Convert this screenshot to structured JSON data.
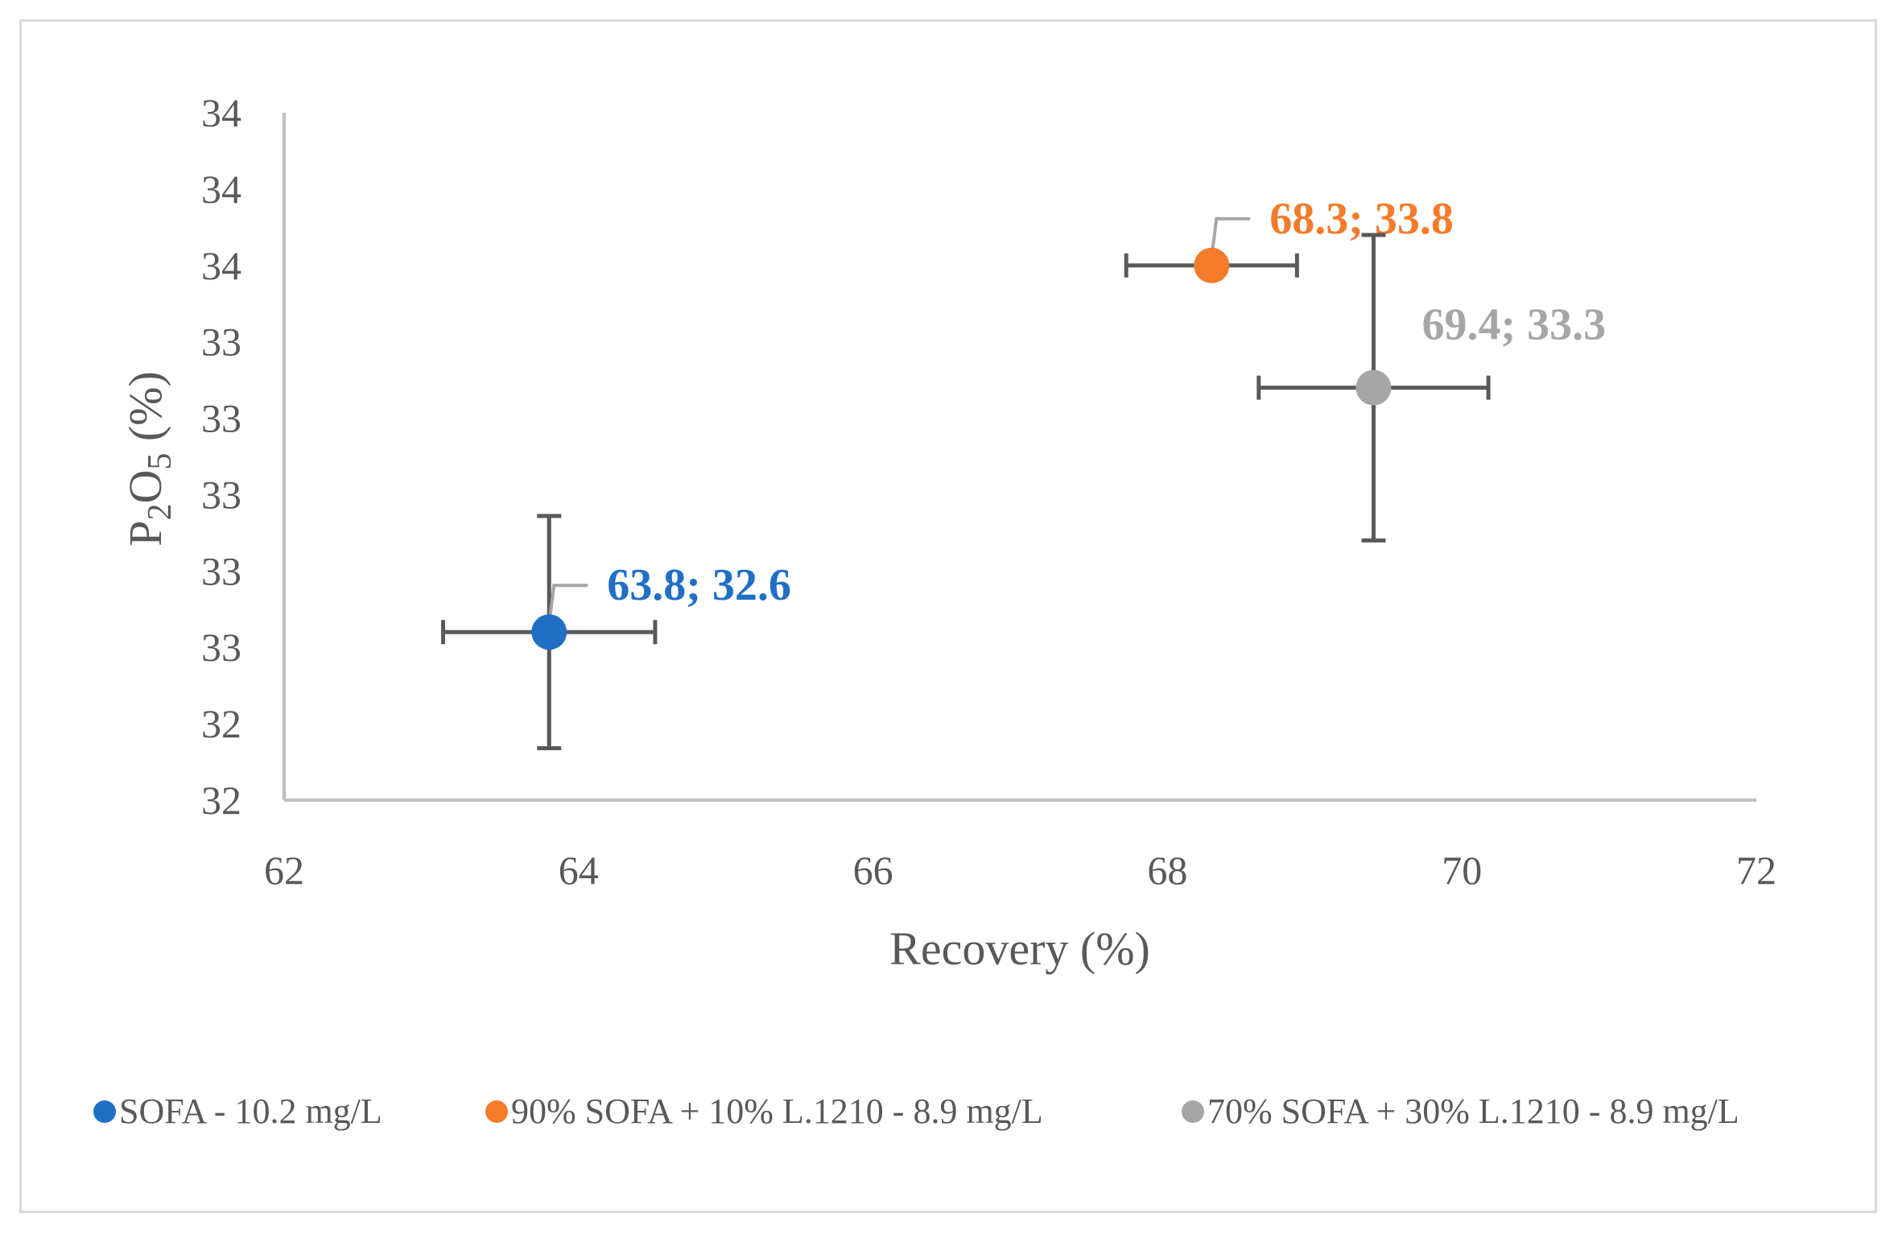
{
  "chart_data": {
    "type": "scatter",
    "title": "",
    "xlabel": "Recovery (%)",
    "ylabel_parts": {
      "p": "P",
      "sub1": "2",
      "o": "O",
      "sub2": "5",
      "unit": " (%)"
    },
    "xlim": [
      62,
      72
    ],
    "ylim": [
      32.0,
      34.2
    ],
    "x_ticks": [
      {
        "value": 62,
        "label": "62"
      },
      {
        "value": 64,
        "label": "64"
      },
      {
        "value": 66,
        "label": "66"
      },
      {
        "value": 68,
        "label": "68"
      },
      {
        "value": 70,
        "label": "70"
      },
      {
        "value": 72,
        "label": "72"
      }
    ],
    "y_ticks": [
      {
        "value": 32.0,
        "label": "32"
      },
      {
        "value": 32.25,
        "label": "32"
      },
      {
        "value": 32.5,
        "label": "33"
      },
      {
        "value": 32.75,
        "label": "33"
      },
      {
        "value": 33.0,
        "label": "33"
      },
      {
        "value": 33.25,
        "label": "33"
      },
      {
        "value": 33.5,
        "label": "33"
      },
      {
        "value": 33.75,
        "label": "34"
      },
      {
        "value": 34.0,
        "label": "34"
      },
      {
        "value": 34.25,
        "label": "34"
      }
    ],
    "grid": false,
    "legend_position": "bottom",
    "series": [
      {
        "name": "SOFA - 10.2 mg/L",
        "color": "#1f6fc5",
        "x": 63.8,
        "y": 32.55,
        "x_err": 0.72,
        "y_err": 0.38,
        "label": "63.8; 32.6"
      },
      {
        "name": "90% SOFA + 10% L.1210 - 8.9 mg/L",
        "color": "#f47b2a",
        "x": 68.3,
        "y": 33.75,
        "x_err": 0.58,
        "y_err": 0,
        "label": "68.3; 33.8"
      },
      {
        "name": "70% SOFA + 30% L.1210 - 8.9 mg/L",
        "color": "#a6a6a6",
        "x": 69.4,
        "y": 33.35,
        "x_err": 0.78,
        "y_err": 0.5,
        "label": "69.4; 33.3"
      }
    ]
  }
}
